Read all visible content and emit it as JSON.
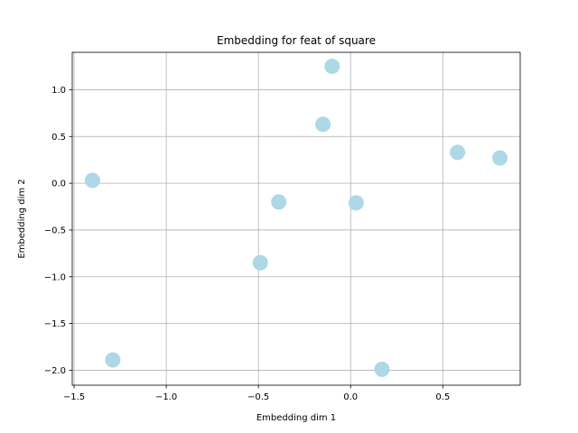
{
  "chart_data": {
    "type": "scatter",
    "title": "Embedding for feat of square",
    "xlabel": "Embedding dim 1",
    "ylabel": "Embedding dim 2",
    "xlim": [
      -1.51,
      0.92
    ],
    "ylim": [
      -2.16,
      1.4
    ],
    "xticks": [
      -1.5,
      -1.0,
      -0.5,
      0.0,
      0.5
    ],
    "xtick_labels": [
      "−1.5",
      "−1.0",
      "−0.5",
      "0.0",
      "0.5"
    ],
    "yticks": [
      -2.0,
      -1.5,
      -1.0,
      -0.5,
      0.0,
      0.5,
      1.0
    ],
    "ytick_labels": [
      "−2.0",
      "−1.5",
      "−1.0",
      "−0.5",
      "0.0",
      "0.5",
      "1.0"
    ],
    "grid": true,
    "color": "#add8e6",
    "points": [
      {
        "x": -1.4,
        "y": 0.03
      },
      {
        "x": -1.29,
        "y": -1.89
      },
      {
        "x": -0.49,
        "y": -0.85
      },
      {
        "x": -0.39,
        "y": -0.2
      },
      {
        "x": -0.15,
        "y": 0.63
      },
      {
        "x": -0.1,
        "y": 1.25
      },
      {
        "x": 0.03,
        "y": -0.21
      },
      {
        "x": 0.17,
        "y": -1.99
      },
      {
        "x": 0.58,
        "y": 0.33
      },
      {
        "x": 0.81,
        "y": 0.27
      }
    ]
  }
}
